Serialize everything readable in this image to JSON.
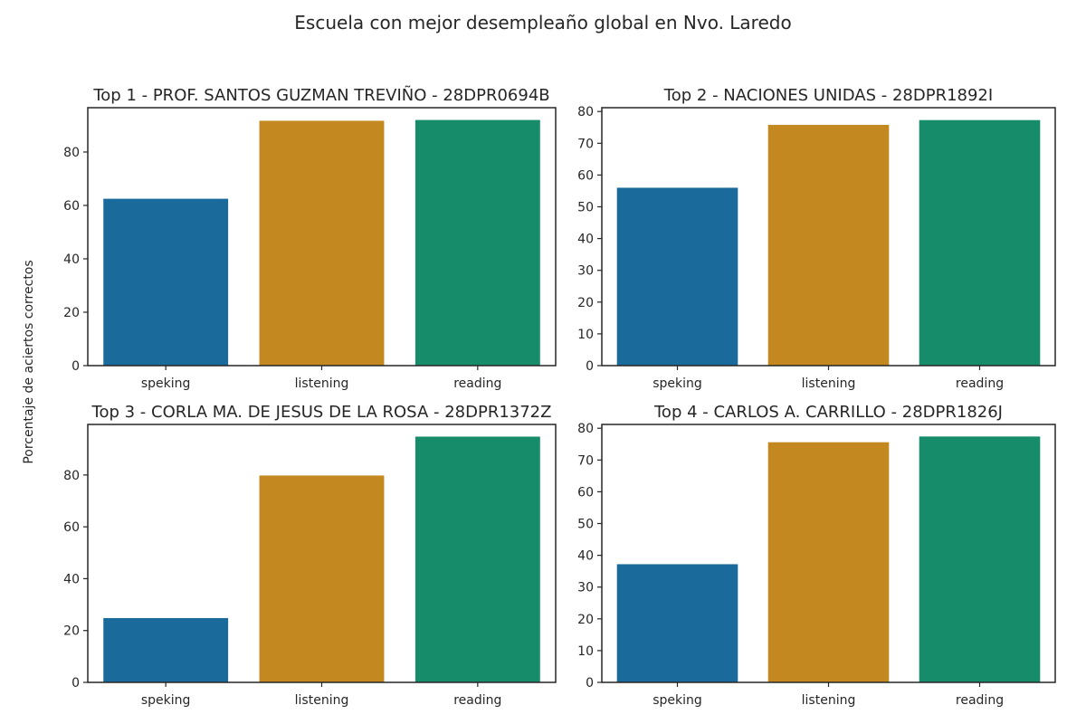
{
  "figure": {
    "title": "Escuela con mejor desempleaño global en Nvo. Laredo",
    "ylabel": "Porcentaje de aciertos correctos"
  },
  "colors": {
    "speking": "#1a6b9c",
    "listening": "#c38820",
    "reading": "#178c6a"
  },
  "chart_data": [
    {
      "type": "bar",
      "title": "Top  1 - PROF. SANTOS GUZMAN TREVIÑO - 28DPR0694B",
      "categories": [
        "speking",
        "listening",
        "reading"
      ],
      "values": [
        62.5,
        91.7,
        92.0
      ],
      "ylim": [
        0,
        96.6
      ],
      "yticks": [
        0,
        20,
        40,
        60,
        80
      ]
    },
    {
      "type": "bar",
      "title": "Top  2 - NACIONES UNIDAS - 28DPR1892I",
      "categories": [
        "speking",
        "listening",
        "reading"
      ],
      "values": [
        56.0,
        75.8,
        77.3
      ],
      "ylim": [
        0,
        81.2
      ],
      "yticks": [
        0,
        10,
        20,
        30,
        40,
        50,
        60,
        70,
        80
      ]
    },
    {
      "type": "bar",
      "title": "Top  3 - CORLA MA. DE JESUS DE LA ROSA - 28DPR1372Z",
      "categories": [
        "speking",
        "listening",
        "reading"
      ],
      "values": [
        24.8,
        79.8,
        94.8
      ],
      "ylim": [
        0,
        99.5
      ],
      "yticks": [
        0,
        20,
        40,
        60,
        80
      ]
    },
    {
      "type": "bar",
      "title": "Top  4 - CARLOS A. CARRILLO - 28DPR1826J",
      "categories": [
        "speking",
        "listening",
        "reading"
      ],
      "values": [
        37.2,
        75.6,
        77.4
      ],
      "ylim": [
        0,
        81.2
      ],
      "yticks": [
        0,
        10,
        20,
        30,
        40,
        50,
        60,
        70,
        80
      ]
    }
  ]
}
